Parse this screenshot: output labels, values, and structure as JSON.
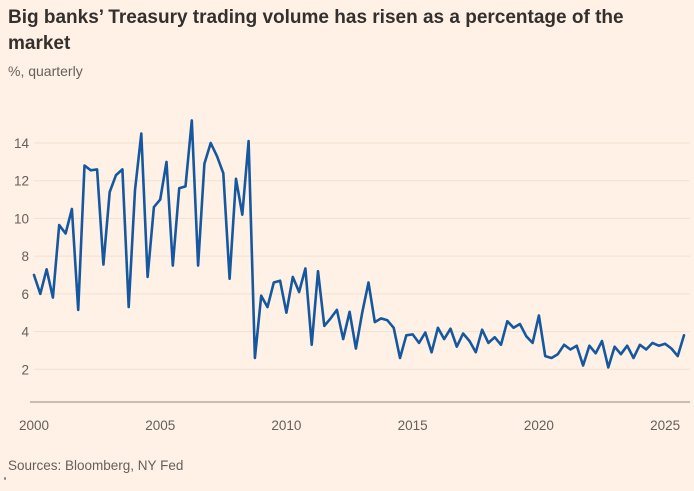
{
  "header": {
    "title": "Big banks’ Treasury trading volume has risen as a percentage of the market",
    "subtitle": "%, quarterly"
  },
  "footer": {
    "sources": "Sources: Bloomberg, NY Fed"
  },
  "chart_data": {
    "type": "line",
    "title": "Big banks’ Treasury trading volume has risen as a percentage of the market",
    "subtitle": "%, quarterly",
    "unit": "%",
    "frequency": "quarterly",
    "x_start": "2000-Q1",
    "x_end": "2025-Q4",
    "x_ticks": [
      2000,
      2005,
      2010,
      2015,
      2020,
      2025
    ],
    "y_ticks": [
      2,
      4,
      6,
      8,
      10,
      12,
      14
    ],
    "ylim": [
      0.3,
      15.8
    ],
    "grid": "horizontal",
    "legend": "none",
    "source": "Sources: Bloomberg, NY Fed",
    "series": [
      {
        "name": "big-banks-share-of-treasury-trading",
        "values": [
          7.0,
          6.0,
          7.3,
          5.8,
          9.65,
          9.2,
          10.5,
          5.15,
          12.8,
          12.55,
          12.6,
          7.55,
          11.4,
          12.3,
          12.6,
          5.3,
          11.5,
          14.5,
          6.9,
          10.6,
          11.0,
          13.0,
          7.5,
          11.6,
          11.7,
          15.2,
          7.5,
          12.9,
          14.0,
          13.3,
          12.4,
          6.8,
          12.1,
          10.2,
          14.1,
          2.6,
          5.9,
          5.3,
          6.6,
          6.7,
          5.0,
          6.9,
          6.1,
          7.35,
          3.3,
          7.2,
          4.3,
          4.7,
          5.15,
          3.6,
          5.05,
          3.1,
          5.0,
          6.6,
          4.5,
          4.7,
          4.6,
          4.2,
          2.6,
          3.8,
          3.85,
          3.4,
          3.95,
          2.9,
          4.2,
          3.6,
          4.15,
          3.2,
          3.9,
          3.5,
          2.9,
          4.1,
          3.4,
          3.7,
          3.3,
          4.55,
          4.2,
          4.4,
          3.75,
          3.4,
          4.85,
          2.7,
          2.6,
          2.8,
          3.3,
          3.05,
          3.25,
          2.2,
          3.25,
          2.85,
          3.5,
          2.1,
          3.2,
          2.8,
          3.25,
          2.6,
          3.3,
          3.05,
          3.4,
          3.25,
          3.35,
          3.1,
          2.7,
          3.8
        ]
      }
    ],
    "colors": {
      "background": "#fff1e5",
      "line": "#16589f",
      "grid": "#f0e1d1",
      "axis": "#ab9d8f",
      "tick_text": "#66605c",
      "title_text": "#33302e"
    }
  }
}
